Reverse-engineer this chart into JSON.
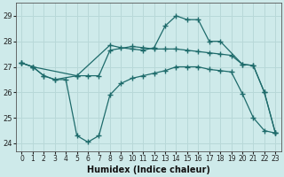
{
  "xlabel": "Humidex (Indice chaleur)",
  "bg_color": "#ceeaea",
  "grid_color": "#b8d8d8",
  "line_color": "#1e6b6b",
  "ylim": [
    23.7,
    29.5
  ],
  "xlim": [
    -0.5,
    23.5
  ],
  "yticks": [
    24,
    25,
    26,
    27,
    28,
    29
  ],
  "xticks": [
    0,
    1,
    2,
    3,
    4,
    5,
    6,
    7,
    8,
    9,
    10,
    11,
    12,
    13,
    14,
    15,
    16,
    17,
    18,
    19,
    20,
    21,
    22,
    23
  ],
  "line1_x": [
    0,
    1,
    2,
    3,
    4,
    5,
    6,
    7,
    8,
    9,
    10,
    11,
    12,
    13,
    14,
    15,
    16,
    17,
    18,
    19,
    20,
    21,
    22,
    23
  ],
  "line1_y": [
    27.15,
    27.0,
    26.65,
    26.5,
    26.5,
    24.3,
    24.05,
    24.3,
    25.9,
    26.35,
    26.55,
    26.65,
    26.75,
    26.85,
    27.0,
    27.0,
    27.0,
    26.9,
    26.85,
    26.8,
    25.95,
    25.0,
    24.5,
    24.4
  ],
  "line2_x": [
    0,
    1,
    2,
    3,
    5,
    6,
    7,
    8,
    10,
    11,
    12,
    13,
    14,
    15,
    16,
    17,
    18,
    19,
    20,
    21,
    22,
    23
  ],
  "line2_y": [
    27.15,
    27.0,
    26.65,
    26.5,
    26.65,
    26.65,
    26.65,
    27.65,
    27.8,
    27.75,
    27.7,
    27.7,
    27.7,
    27.65,
    27.6,
    27.55,
    27.5,
    27.45,
    27.1,
    27.05,
    26.0,
    24.4
  ],
  "line3_x": [
    0,
    1,
    5,
    8,
    9,
    10,
    11,
    12,
    13,
    14,
    15,
    16,
    17,
    18,
    20,
    21,
    22,
    23
  ],
  "line3_y": [
    27.15,
    27.0,
    26.65,
    27.85,
    27.75,
    27.7,
    27.65,
    27.75,
    28.6,
    29.0,
    28.85,
    28.85,
    28.0,
    28.0,
    27.1,
    27.05,
    26.0,
    24.4
  ]
}
